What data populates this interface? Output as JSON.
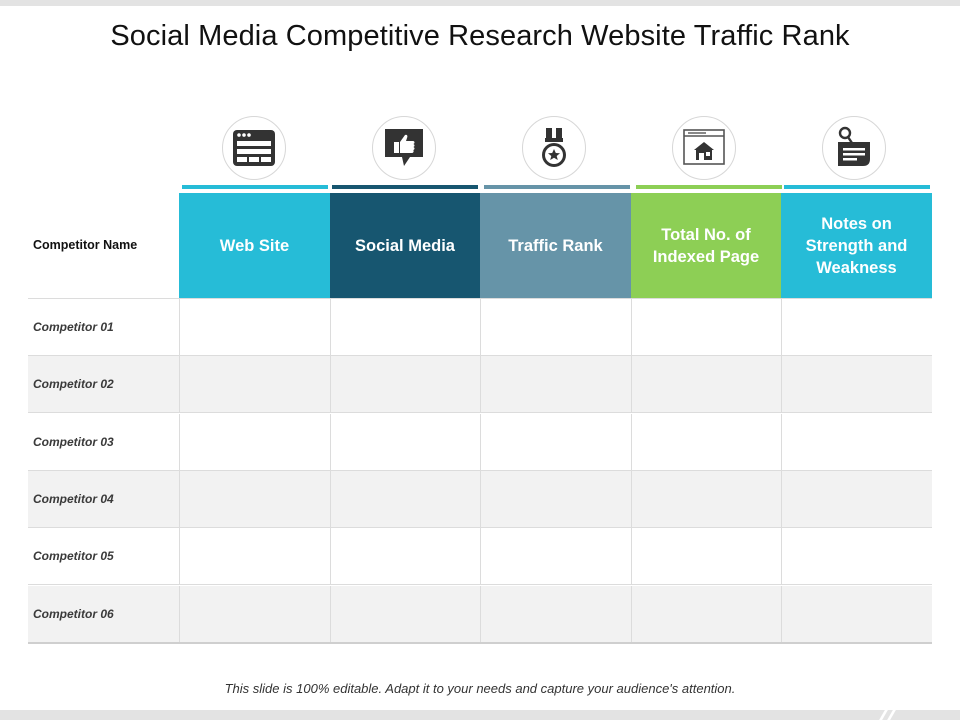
{
  "title": "Social Media Competitive Research Website Traffic Rank",
  "corner_label": "Competitor Name",
  "columns": [
    {
      "label": "Web Site",
      "icon": "browser-window-icon",
      "color": "#26bcd7",
      "accent": "#26bcd7"
    },
    {
      "label": "Social Media",
      "icon": "thumbs-up-speech-bubble-icon",
      "color": "#175670",
      "accent": "#175670"
    },
    {
      "label": "Traffic Rank",
      "icon": "medal-icon",
      "color": "#6694a8",
      "accent": "#6694a8"
    },
    {
      "label": "Total No. of Indexed Page",
      "icon": "webpage-home-icon",
      "color": "#8dcf55",
      "accent": "#8dcf55"
    },
    {
      "label": "Notes on Strength and Weakness",
      "icon": "notes-tag-icon",
      "color": "#26bcd7",
      "accent": "#26bcd7"
    }
  ],
  "rows": [
    {
      "label": "Competitor 01",
      "cells": [
        "",
        "",
        "",
        "",
        ""
      ]
    },
    {
      "label": "Competitor 02",
      "cells": [
        "",
        "",
        "",
        "",
        ""
      ]
    },
    {
      "label": "Competitor 03",
      "cells": [
        "",
        "",
        "",
        "",
        ""
      ]
    },
    {
      "label": "Competitor 04",
      "cells": [
        "",
        "",
        "",
        "",
        ""
      ]
    },
    {
      "label": "Competitor 05",
      "cells": [
        "",
        "",
        "",
        "",
        ""
      ]
    },
    {
      "label": "Competitor 06",
      "cells": [
        "",
        "",
        "",
        "",
        ""
      ]
    }
  ],
  "footer": "This slide is 100% editable. Adapt it to your needs and capture your audience's attention."
}
